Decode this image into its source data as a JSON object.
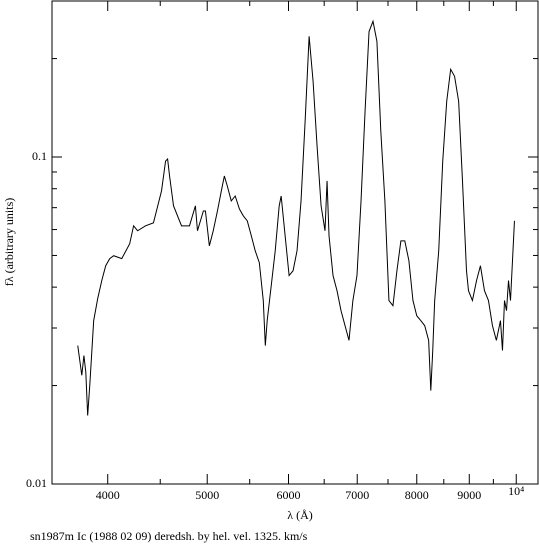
{
  "chart_data": {
    "type": "line",
    "xlabel": "λ (Å)",
    "ylabel": "fλ (arbitrary units)",
    "caption": "sn1987m Ic (1988 02 09) deredsh. by hel. vel.  1325. km/s",
    "xscale": "log",
    "yscale": "log",
    "color": "#000000",
    "xlim": [
      3530,
      10500
    ],
    "ylim": [
      0.01,
      0.3
    ],
    "xticks": [
      4000,
      5000,
      6000,
      7000,
      8000,
      9000,
      {
        "value": 10000,
        "label": "10⁴"
      }
    ],
    "xminorticks": [
      4500,
      5500,
      6500,
      7500,
      8500,
      9500
    ],
    "yticks": [
      0.01,
      0.1
    ],
    "yminorticks": [
      0.02,
      0.03,
      0.04,
      0.05,
      0.06,
      0.07,
      0.08,
      0.09,
      0.2
    ],
    "x": [
      3740,
      3774,
      3792,
      3808,
      3824,
      3842,
      3876,
      3911,
      3947,
      3982,
      4018,
      4054,
      4128,
      4202,
      4239,
      4277,
      4354,
      4432,
      4513,
      4554,
      4575,
      4595,
      4636,
      4720,
      4805,
      4869,
      4892,
      4957,
      4980,
      5024,
      5068,
      5116,
      5161,
      5196,
      5230,
      5277,
      5324,
      5374,
      5421,
      5470,
      5520,
      5568,
      5620,
      5670,
      5696,
      5720,
      5772,
      5824,
      5876,
      5902,
      5955,
      6008,
      6062,
      6116,
      6171,
      6228,
      6284,
      6340,
      6397,
      6455,
      6512,
      6542,
      6571,
      6630,
      6690,
      6750,
      6811,
      6872,
      6932,
      6996,
      7060,
      7124,
      7188,
      7252,
      7316,
      7380,
      7448,
      7516,
      7584,
      7652,
      7720,
      7788,
      7860,
      7932,
      8000,
      8072,
      8144,
      8216,
      8256,
      8292,
      8328,
      8404,
      8480,
      8556,
      8632,
      8708,
      8788,
      8864,
      8944,
      8984,
      9064,
      9148,
      9228,
      9312,
      9396,
      9480,
      9564,
      9652,
      9696,
      9740,
      9784,
      9828,
      9872,
      9916,
      9960
    ],
    "values": [
      0.0265,
      0.0215,
      0.0247,
      0.022,
      0.0162,
      0.02,
      0.0316,
      0.0369,
      0.0419,
      0.0465,
      0.0489,
      0.0499,
      0.0489,
      0.0543,
      0.0616,
      0.0595,
      0.0616,
      0.0629,
      0.0788,
      0.0972,
      0.0986,
      0.0875,
      0.0709,
      0.0616,
      0.0616,
      0.0709,
      0.0595,
      0.0684,
      0.0684,
      0.0535,
      0.0595,
      0.0684,
      0.0788,
      0.0875,
      0.0816,
      0.0734,
      0.076,
      0.0694,
      0.0661,
      0.0638,
      0.0574,
      0.0517,
      0.0475,
      0.0364,
      0.0265,
      0.0316,
      0.0404,
      0.0517,
      0.0709,
      0.076,
      0.0574,
      0.0434,
      0.0449,
      0.0517,
      0.0734,
      0.1288,
      0.234,
      0.1705,
      0.108,
      0.0709,
      0.0595,
      0.0845,
      0.0574,
      0.0434,
      0.039,
      0.0339,
      0.0305,
      0.0275,
      0.0364,
      0.0434,
      0.0734,
      0.138,
      0.242,
      0.26,
      0.226,
      0.12,
      0.0734,
      0.0364,
      0.0351,
      0.0449,
      0.0554,
      0.0554,
      0.0482,
      0.0364,
      0.0327,
      0.0316,
      0.0305,
      0.0275,
      0.0193,
      0.0256,
      0.0364,
      0.0517,
      0.0972,
      0.148,
      0.1855,
      0.1766,
      0.148,
      0.0845,
      0.0449,
      0.039,
      0.0364,
      0.0419,
      0.0465,
      0.039,
      0.0364,
      0.0305,
      0.0275,
      0.0316,
      0.0256,
      0.0364,
      0.0339,
      0.0419,
      0.0364,
      0.0482,
      0.0638
    ]
  }
}
